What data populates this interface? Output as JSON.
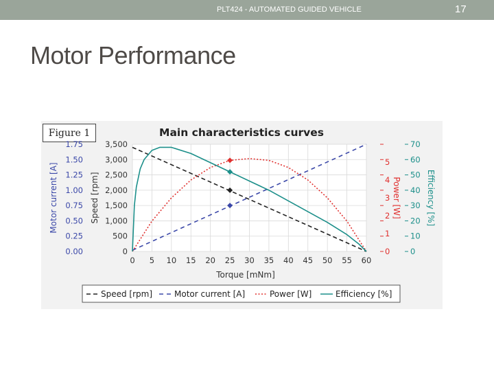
{
  "header": {
    "course": "PLT424 - AUTOMATED GUIDED VEHICLE",
    "page_number": "17"
  },
  "slide": {
    "title": "Motor Performance"
  },
  "figure": {
    "label": "Figure 1"
  },
  "colors": {
    "topbar": "#9aa59a",
    "speed": "#222222",
    "current": "#3b48a8",
    "power": "#e0302e",
    "efficiency": "#1c8f8a"
  },
  "chart_data": {
    "type": "line",
    "title": "Main characteristics curves",
    "xlabel": "Torque [mNm]",
    "xlim": [
      0,
      60
    ],
    "x_ticks": [
      "0",
      "5",
      "10",
      "15",
      "20",
      "25",
      "30",
      "35",
      "40",
      "45",
      "50",
      "55",
      "60"
    ],
    "grid": true,
    "axes": {
      "current": {
        "label": "Motor current [A]",
        "ylim": [
          0,
          1.75
        ],
        "ticks": [
          "0.00",
          "0.25",
          "0.50",
          "0.75",
          "1.00",
          "1.25",
          "1.50",
          "1.75"
        ]
      },
      "speed": {
        "label": "Speed [rpm]",
        "ylim": [
          0,
          3500
        ],
        "ticks": [
          "0",
          "500",
          "1,000",
          "1,500",
          "2,000",
          "2,500",
          "3,000",
          "3,500"
        ]
      },
      "power": {
        "label": "Power [W]",
        "ylim": [
          0,
          6
        ],
        "ticks": [
          "0",
          "1",
          "2",
          "3",
          "4",
          "5"
        ]
      },
      "efficiency": {
        "label": "Efficiency [%]",
        "ylim": [
          0,
          70
        ],
        "ticks": [
          "0",
          "10",
          "20",
          "30",
          "40",
          "50",
          "60",
          "70"
        ]
      }
    },
    "series": [
      {
        "name": "Speed [rpm]",
        "axis": "speed",
        "style": "dashed",
        "x": [
          0,
          60
        ],
        "y": [
          3400,
          0
        ]
      },
      {
        "name": "Motor current [A]",
        "axis": "current",
        "style": "dashed",
        "x": [
          0,
          60
        ],
        "y": [
          0.02,
          1.75
        ]
      },
      {
        "name": "Power [W]",
        "axis": "power",
        "style": "dotted",
        "x": [
          0,
          5,
          10,
          15,
          20,
          25,
          30,
          35,
          40,
          45,
          50,
          55,
          60
        ],
        "y": [
          0,
          1.7,
          3.0,
          4.0,
          4.7,
          5.1,
          5.2,
          5.1,
          4.7,
          4.0,
          3.0,
          1.7,
          0
        ]
      },
      {
        "name": "Efficiency [%]",
        "axis": "efficiency",
        "style": "solid",
        "x": [
          0,
          0.5,
          1,
          2,
          3,
          5,
          7,
          10,
          15,
          20,
          25,
          30,
          35,
          40,
          45,
          50,
          55,
          58,
          60
        ],
        "y": [
          0,
          30,
          42,
          54,
          60,
          66,
          68,
          68,
          64,
          58,
          52,
          46,
          40,
          33,
          26,
          19,
          11,
          5,
          0
        ]
      }
    ],
    "markers": [
      {
        "series": "Power [W]",
        "x": 25,
        "y": 5.1
      },
      {
        "series": "Efficiency [%]",
        "x": 25,
        "y": 52
      },
      {
        "series": "Speed [rpm]",
        "x": 25,
        "y": 2000
      },
      {
        "series": "Motor current [A]",
        "x": 25,
        "y": 0.75
      }
    ],
    "legend": {
      "placement": "bottom",
      "entries": [
        "Speed [rpm]",
        "Motor current [A]",
        "Power [W]",
        "Efficiency [%]"
      ]
    }
  }
}
